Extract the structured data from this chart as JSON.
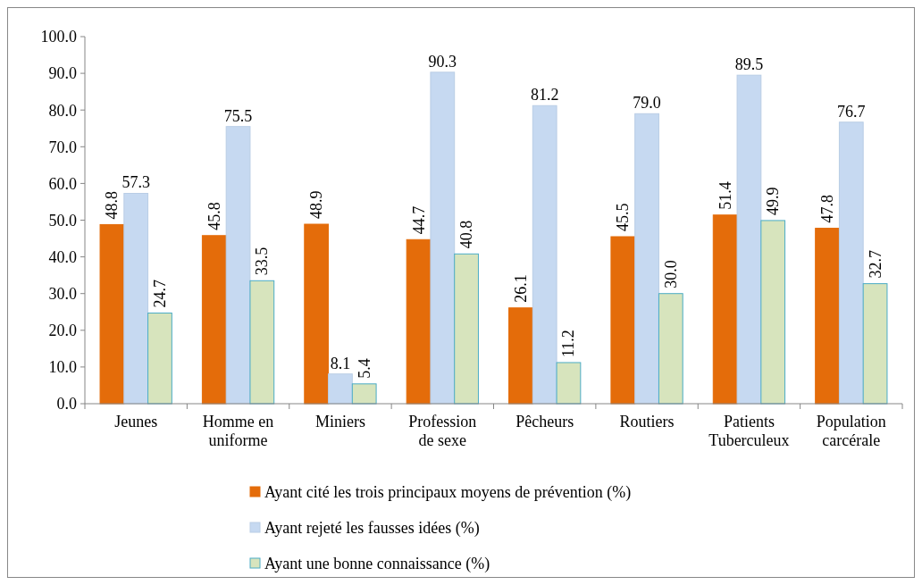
{
  "chart_data": {
    "type": "bar",
    "categories": [
      "Jeunes",
      "Homme en uniforme",
      "Miniers",
      "Profession de sexe",
      "Pêcheurs",
      "Routiers",
      "Patients Tuberculeux",
      "Population carcérale"
    ],
    "series": [
      {
        "name": "Ayant cité les trois principaux moyens de prévention (%)",
        "color": "#e46c0a",
        "values": [
          48.8,
          45.8,
          48.9,
          44.7,
          26.1,
          45.5,
          51.4,
          47.8
        ],
        "value_labels": [
          "48.8",
          "45.8",
          "48.9",
          "44.7",
          "26.1",
          "45.5",
          "51.4",
          "47.8"
        ]
      },
      {
        "name": "Ayant rejeté les fausses idées (%)",
        "color": "#c6d9f1",
        "values": [
          57.3,
          75.5,
          8.1,
          90.3,
          81.2,
          79.0,
          89.5,
          76.7
        ],
        "value_labels": [
          "57.3",
          "75.5",
          "8.1",
          "90.3",
          "81.2",
          "79.0",
          "89.5",
          "76.7"
        ]
      },
      {
        "name": "Ayant une bonne connaissance (%)",
        "color": "#d7e4bd",
        "values": [
          24.7,
          33.5,
          5.4,
          40.8,
          11.2,
          30.0,
          49.9,
          32.7
        ],
        "value_labels": [
          "24.7",
          "33.5",
          "5.4",
          "40.8",
          "11.2",
          "30.0",
          "49.9",
          "32.7"
        ]
      }
    ],
    "ylim": [
      0,
      100
    ],
    "yticks": [
      {
        "value": 0,
        "label": "0.0"
      },
      {
        "value": 10,
        "label": "10.0"
      },
      {
        "value": 20,
        "label": "20.0"
      },
      {
        "value": 30,
        "label": "30.0"
      },
      {
        "value": 40,
        "label": "40.0"
      },
      {
        "value": 50,
        "label": "50.0"
      },
      {
        "value": 60,
        "label": "60.0"
      },
      {
        "value": 70,
        "label": "70.0"
      },
      {
        "value": 80,
        "label": "80.0"
      },
      {
        "value": 90,
        "label": "90.0"
      },
      {
        "value": 100,
        "label": "100.0"
      }
    ],
    "legend": "bottom",
    "grid": false
  }
}
